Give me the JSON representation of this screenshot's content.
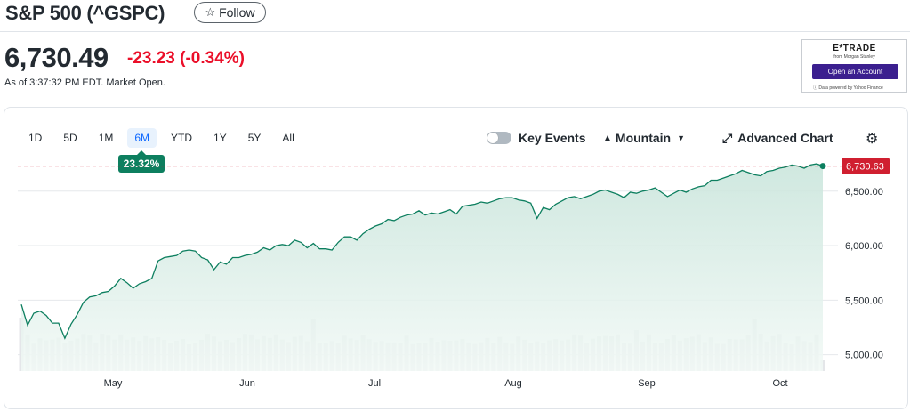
{
  "header": {
    "title": "S&P 500 (^GSPC)",
    "follow_label": "Follow",
    "follow_icon": "star-outline-icon"
  },
  "quote": {
    "price": "6,730.49",
    "change": "-23.23 (-0.34%)",
    "as_of": "As of 3:37:32 PM EDT. Market Open.",
    "change_color": "#eb0f29"
  },
  "ad": {
    "brand": "E*TRADE",
    "sub": "from Morgan Stanley",
    "cta": "Open an Account",
    "powered": "Data powered by Yahoo Finance"
  },
  "toolbar": {
    "ranges": [
      "1D",
      "5D",
      "1M",
      "6M",
      "YTD",
      "1Y",
      "5Y",
      "All"
    ],
    "active_range": "6M",
    "performance": "23.32%",
    "key_events_label": "Key Events",
    "key_events_on": false,
    "chart_type_label": "Mountain",
    "advanced_label": "Advanced Chart",
    "settings_icon": "gear-icon"
  },
  "chart_data": {
    "type": "area",
    "title": "",
    "xlabel": "",
    "ylabel": "",
    "last_price_label": "6,730.63",
    "ylim": [
      4850,
      6800
    ],
    "y_ticks": [
      5000,
      5500,
      6000,
      6500
    ],
    "y_tick_labels": [
      "5,000.00",
      "5,500.00",
      "6,000.00",
      "6,500.00"
    ],
    "x_tick_labels": [
      "May",
      "Jun",
      "Jul",
      "Aug",
      "Sep",
      "Oct"
    ],
    "grid": true,
    "colors": {
      "line": "#0d7f5f",
      "fill_top": "#c7e4da",
      "fill_bottom": "#f2f9f6",
      "last_badge": "#d01f30",
      "volume": "#e4e6e9",
      "dashed_line": "#d01f30"
    },
    "series": [
      {
        "values": [
          5460,
          5270,
          5380,
          5400,
          5360,
          5290,
          5290,
          5150,
          5280,
          5370,
          5480,
          5530,
          5540,
          5570,
          5580,
          5630,
          5700,
          5660,
          5610,
          5650,
          5670,
          5700,
          5860,
          5890,
          5900,
          5910,
          5950,
          5960,
          5950,
          5890,
          5870,
          5780,
          5850,
          5830,
          5890,
          5890,
          5910,
          5920,
          5940,
          5980,
          5960,
          6000,
          6010,
          6000,
          6050,
          6030,
          5980,
          6020,
          5970,
          5970,
          5960,
          6030,
          6080,
          6080,
          6050,
          6110,
          6150,
          6180,
          6200,
          6240,
          6230,
          6260,
          6280,
          6290,
          6320,
          6280,
          6300,
          6290,
          6310,
          6330,
          6290,
          6360,
          6370,
          6380,
          6400,
          6390,
          6410,
          6430,
          6440,
          6440,
          6420,
          6410,
          6390,
          6250,
          6350,
          6330,
          6380,
          6410,
          6440,
          6450,
          6430,
          6450,
          6470,
          6500,
          6510,
          6490,
          6470,
          6440,
          6490,
          6480,
          6500,
          6510,
          6530,
          6490,
          6450,
          6480,
          6510,
          6490,
          6520,
          6540,
          6550,
          6600,
          6600,
          6620,
          6640,
          6660,
          6690,
          6670,
          6650,
          6640,
          6680,
          6690,
          6710,
          6720,
          6740,
          6730,
          6710,
          6740,
          6750,
          6730
        ]
      }
    ]
  }
}
